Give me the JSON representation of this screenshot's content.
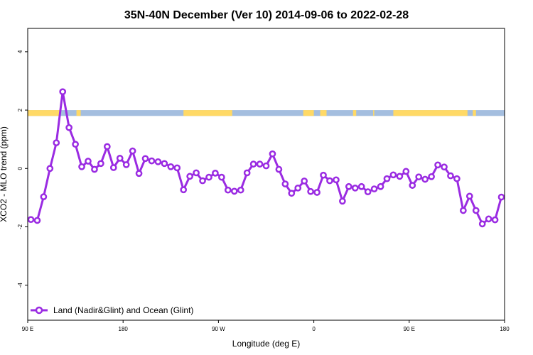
{
  "chart_data": {
    "type": "line",
    "title": "35N-40N December (Ver 10)   2014-09-06 to 2022-02-28",
    "xlabel": "Longitude (deg E)",
    "ylabel": "XCO2 - MLO trend (ppm)",
    "xlim": [
      90,
      540
    ],
    "ylim": [
      -5.2,
      4.8
    ],
    "x_ticks": [
      {
        "value": 90,
        "label": "90 E"
      },
      {
        "value": 180,
        "label": "180"
      },
      {
        "value": 270,
        "label": "90 W"
      },
      {
        "value": 360,
        "label": "0"
      },
      {
        "value": 450,
        "label": "90 E"
      },
      {
        "value": 540,
        "label": "180"
      }
    ],
    "y_ticks": [
      {
        "value": -4,
        "label": "-4"
      },
      {
        "value": -2,
        "label": "-2"
      },
      {
        "value": 0,
        "label": "0"
      },
      {
        "value": 2,
        "label": "2"
      },
      {
        "value": 4,
        "label": "4"
      }
    ],
    "land_ocean_band": {
      "y_range": [
        1.8,
        2.0
      ],
      "land_color": "#FFD966",
      "ocean_color": "#A4BEDF",
      "land_segments": [
        [
          90,
          121
        ],
        [
          136,
          140
        ],
        [
          237,
          283
        ],
        [
          350,
          360
        ],
        [
          366,
          372
        ],
        [
          397,
          400
        ],
        [
          416,
          417
        ],
        [
          435,
          505
        ],
        [
          510,
          513
        ]
      ]
    },
    "series": [
      {
        "name": "Land (Nadir&Glint) and Ocean (Glint)",
        "color": "#9A2BE2",
        "x": [
          93,
          99,
          105,
          111,
          117,
          123,
          129,
          135,
          141,
          147,
          153,
          159,
          165,
          171,
          177,
          183,
          189,
          195,
          201,
          207,
          213,
          219,
          225,
          231,
          237,
          243,
          249,
          255,
          261,
          267,
          273,
          279,
          285,
          291,
          297,
          303,
          309,
          315,
          321,
          327,
          333,
          339,
          345,
          351,
          357,
          363,
          369,
          375,
          381,
          387,
          393,
          399,
          405,
          411,
          417,
          423,
          429,
          435,
          441,
          447,
          453,
          459,
          465,
          471,
          477,
          483,
          489,
          495,
          501,
          507,
          513,
          519,
          525,
          531,
          537
        ],
        "values": [
          -1.75,
          -1.78,
          -0.97,
          0.0,
          0.88,
          2.63,
          1.4,
          0.83,
          0.06,
          0.25,
          -0.03,
          0.17,
          0.75,
          0.03,
          0.35,
          0.13,
          0.6,
          -0.17,
          0.34,
          0.26,
          0.23,
          0.17,
          0.06,
          0.02,
          -0.73,
          -0.27,
          -0.15,
          -0.42,
          -0.3,
          -0.16,
          -0.3,
          -0.74,
          -0.78,
          -0.74,
          -0.15,
          0.15,
          0.15,
          0.09,
          0.5,
          -0.03,
          -0.53,
          -0.85,
          -0.67,
          -0.43,
          -0.79,
          -0.82,
          -0.23,
          -0.42,
          -0.39,
          -1.12,
          -0.62,
          -0.67,
          -0.62,
          -0.8,
          -0.7,
          -0.62,
          -0.35,
          -0.22,
          -0.27,
          -0.1,
          -0.58,
          -0.29,
          -0.37,
          -0.28,
          0.12,
          0.05,
          -0.25,
          -0.35,
          -1.44,
          -0.95,
          -1.44,
          -1.9,
          -1.73,
          -1.76,
          -0.98
        ]
      }
    ],
    "legend": {
      "placement": "bottom-left"
    }
  }
}
